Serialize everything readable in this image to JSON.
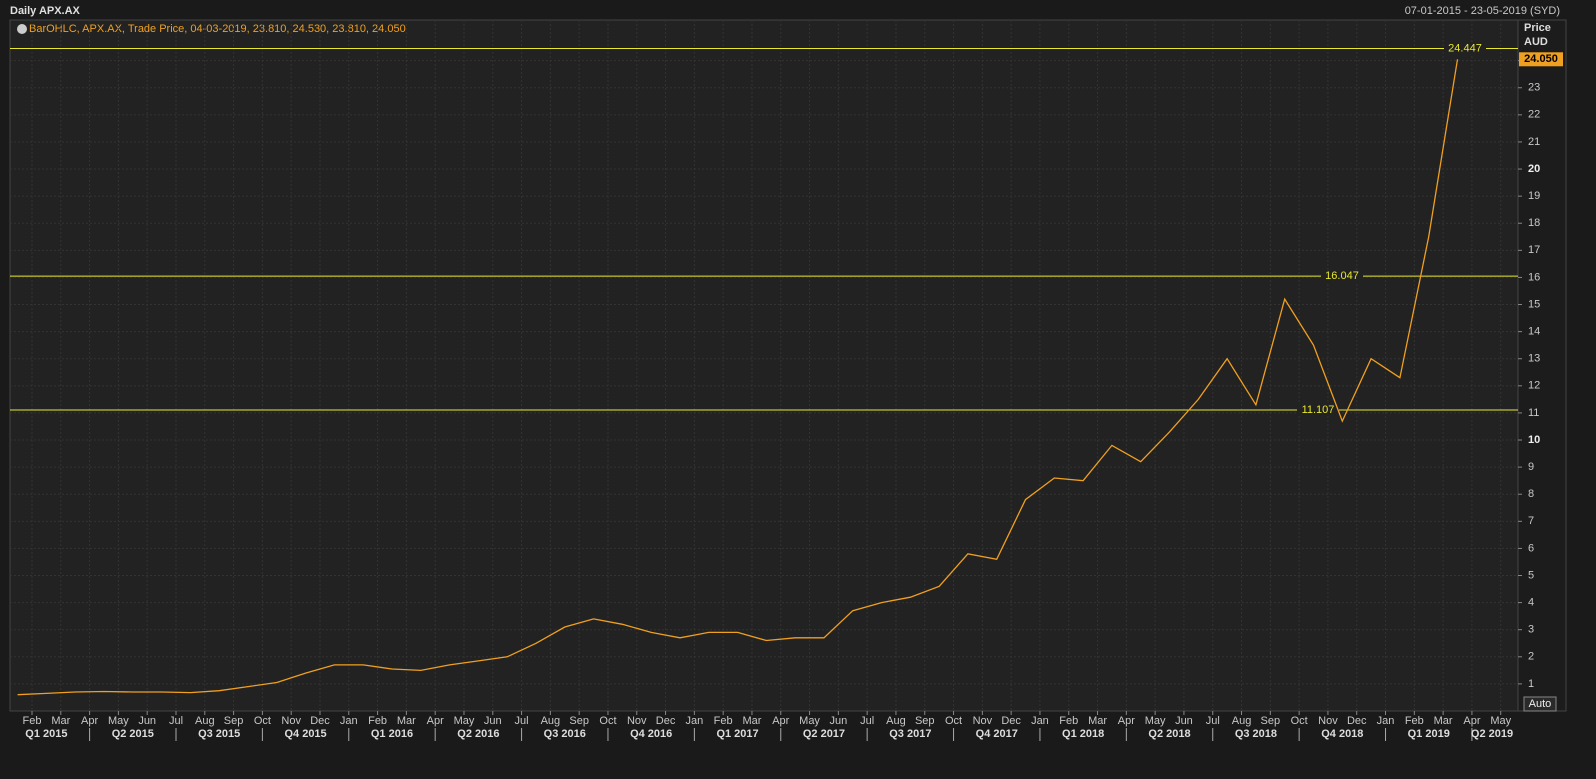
{
  "chart_data": {
    "type": "line",
    "title": "Daily APX.AX",
    "date_range": "07-01-2015 - 23-05-2019 (SYD)",
    "legend_text": "BarOHLC, APX.AX, Trade Price, 04-03-2019, 23.810, 24.530, 23.810, 24.050",
    "y_axis_label": "Price",
    "y_axis_unit": "AUD",
    "auto_button": "Auto",
    "x": [
      "2015-01",
      "2015-02",
      "2015-03",
      "2015-04",
      "2015-05",
      "2015-06",
      "2015-07",
      "2015-08",
      "2015-09",
      "2015-10",
      "2015-11",
      "2015-12",
      "2016-01",
      "2016-02",
      "2016-03",
      "2016-04",
      "2016-05",
      "2016-06",
      "2016-07",
      "2016-08",
      "2016-09",
      "2016-10",
      "2016-11",
      "2016-12",
      "2017-01",
      "2017-02",
      "2017-03",
      "2017-04",
      "2017-05",
      "2017-06",
      "2017-07",
      "2017-08",
      "2017-09",
      "2017-10",
      "2017-11",
      "2017-12",
      "2018-01",
      "2018-02",
      "2018-03",
      "2018-04",
      "2018-05",
      "2018-06",
      "2018-07",
      "2018-08",
      "2018-09",
      "2018-10",
      "2018-11",
      "2018-12",
      "2019-01",
      "2019-02",
      "2019-03"
    ],
    "series": [
      {
        "name": "APX.AX",
        "color": "#f0a020",
        "values": [
          0.6,
          0.65,
          0.7,
          0.72,
          0.7,
          0.7,
          0.68,
          0.75,
          0.9,
          1.05,
          1.4,
          1.7,
          1.7,
          1.55,
          1.5,
          1.7,
          1.85,
          2.0,
          2.5,
          3.1,
          3.4,
          3.2,
          2.9,
          2.7,
          2.9,
          2.9,
          2.6,
          2.7,
          2.7,
          3.7,
          4.0,
          4.2,
          4.6,
          5.8,
          5.6,
          7.8,
          8.6,
          8.5,
          9.8,
          9.2,
          10.3,
          11.5,
          13.0,
          11.3,
          15.2,
          13.5,
          10.7,
          13.0,
          12.3,
          17.5,
          24.05
        ]
      }
    ],
    "xlim": [
      "2015-01",
      "2019-05"
    ],
    "xticks": [
      {
        "value": "2015-02",
        "label": "Feb"
      },
      {
        "value": "2015-03",
        "label": "Mar"
      },
      {
        "value": "2015-04",
        "label": "Apr"
      },
      {
        "value": "2015-05",
        "label": "May"
      },
      {
        "value": "2015-06",
        "label": "Jun"
      },
      {
        "value": "2015-07",
        "label": "Jul"
      },
      {
        "value": "2015-08",
        "label": "Aug"
      },
      {
        "value": "2015-09",
        "label": "Sep"
      },
      {
        "value": "2015-10",
        "label": "Oct"
      },
      {
        "value": "2015-11",
        "label": "Nov"
      },
      {
        "value": "2015-12",
        "label": "Dec"
      },
      {
        "value": "2016-01",
        "label": "Jan"
      },
      {
        "value": "2016-02",
        "label": "Feb"
      },
      {
        "value": "2016-03",
        "label": "Mar"
      },
      {
        "value": "2016-04",
        "label": "Apr"
      },
      {
        "value": "2016-05",
        "label": "May"
      },
      {
        "value": "2016-06",
        "label": "Jun"
      },
      {
        "value": "2016-07",
        "label": "Jul"
      },
      {
        "value": "2016-08",
        "label": "Aug"
      },
      {
        "value": "2016-09",
        "label": "Sep"
      },
      {
        "value": "2016-10",
        "label": "Oct"
      },
      {
        "value": "2016-11",
        "label": "Nov"
      },
      {
        "value": "2016-12",
        "label": "Dec"
      },
      {
        "value": "2017-01",
        "label": "Jan"
      },
      {
        "value": "2017-02",
        "label": "Feb"
      },
      {
        "value": "2017-03",
        "label": "Mar"
      },
      {
        "value": "2017-04",
        "label": "Apr"
      },
      {
        "value": "2017-05",
        "label": "May"
      },
      {
        "value": "2017-06",
        "label": "Jun"
      },
      {
        "value": "2017-07",
        "label": "Jul"
      },
      {
        "value": "2017-08",
        "label": "Aug"
      },
      {
        "value": "2017-09",
        "label": "Sep"
      },
      {
        "value": "2017-10",
        "label": "Oct"
      },
      {
        "value": "2017-11",
        "label": "Nov"
      },
      {
        "value": "2017-12",
        "label": "Dec"
      },
      {
        "value": "2018-01",
        "label": "Jan"
      },
      {
        "value": "2018-02",
        "label": "Feb"
      },
      {
        "value": "2018-03",
        "label": "Mar"
      },
      {
        "value": "2018-04",
        "label": "Apr"
      },
      {
        "value": "2018-05",
        "label": "May"
      },
      {
        "value": "2018-06",
        "label": "Jun"
      },
      {
        "value": "2018-07",
        "label": "Jul"
      },
      {
        "value": "2018-08",
        "label": "Aug"
      },
      {
        "value": "2018-09",
        "label": "Sep"
      },
      {
        "value": "2018-10",
        "label": "Oct"
      },
      {
        "value": "2018-11",
        "label": "Nov"
      },
      {
        "value": "2018-12",
        "label": "Dec"
      },
      {
        "value": "2019-01",
        "label": "Jan"
      },
      {
        "value": "2019-02",
        "label": "Feb"
      },
      {
        "value": "2019-03",
        "label": "Mar"
      },
      {
        "value": "2019-04",
        "label": "Apr"
      },
      {
        "value": "2019-05",
        "label": "May"
      }
    ],
    "quarter_ticks": [
      {
        "value": "2015-01",
        "label": "Q1 2015"
      },
      {
        "value": "2015-04",
        "label": "Q2 2015"
      },
      {
        "value": "2015-07",
        "label": "Q3 2015"
      },
      {
        "value": "2015-10",
        "label": "Q4 2015"
      },
      {
        "value": "2016-01",
        "label": "Q1 2016"
      },
      {
        "value": "2016-04",
        "label": "Q2 2016"
      },
      {
        "value": "2016-07",
        "label": "Q3 2016"
      },
      {
        "value": "2016-10",
        "label": "Q4 2016"
      },
      {
        "value": "2017-01",
        "label": "Q1 2017"
      },
      {
        "value": "2017-04",
        "label": "Q2 2017"
      },
      {
        "value": "2017-07",
        "label": "Q3 2017"
      },
      {
        "value": "2017-10",
        "label": "Q4 2017"
      },
      {
        "value": "2018-01",
        "label": "Q1 2018"
      },
      {
        "value": "2018-04",
        "label": "Q2 2018"
      },
      {
        "value": "2018-07",
        "label": "Q3 2018"
      },
      {
        "value": "2018-10",
        "label": "Q4 2018"
      },
      {
        "value": "2019-01",
        "label": "Q1 2019"
      },
      {
        "value": "2019-04",
        "label": "Q2 2019"
      }
    ],
    "ylim": [
      0,
      25.5
    ],
    "yticks": [
      1,
      2,
      3,
      4,
      5,
      6,
      7,
      8,
      9,
      10,
      11,
      12,
      13,
      14,
      15,
      16,
      17,
      18,
      19,
      20,
      21,
      22,
      23,
      24
    ],
    "grid": true,
    "hlines": [
      24.447,
      16.047,
      11.107
    ],
    "hline_color": "#e8e830",
    "last_price": {
      "value": 24.05,
      "label": "24.050"
    }
  }
}
